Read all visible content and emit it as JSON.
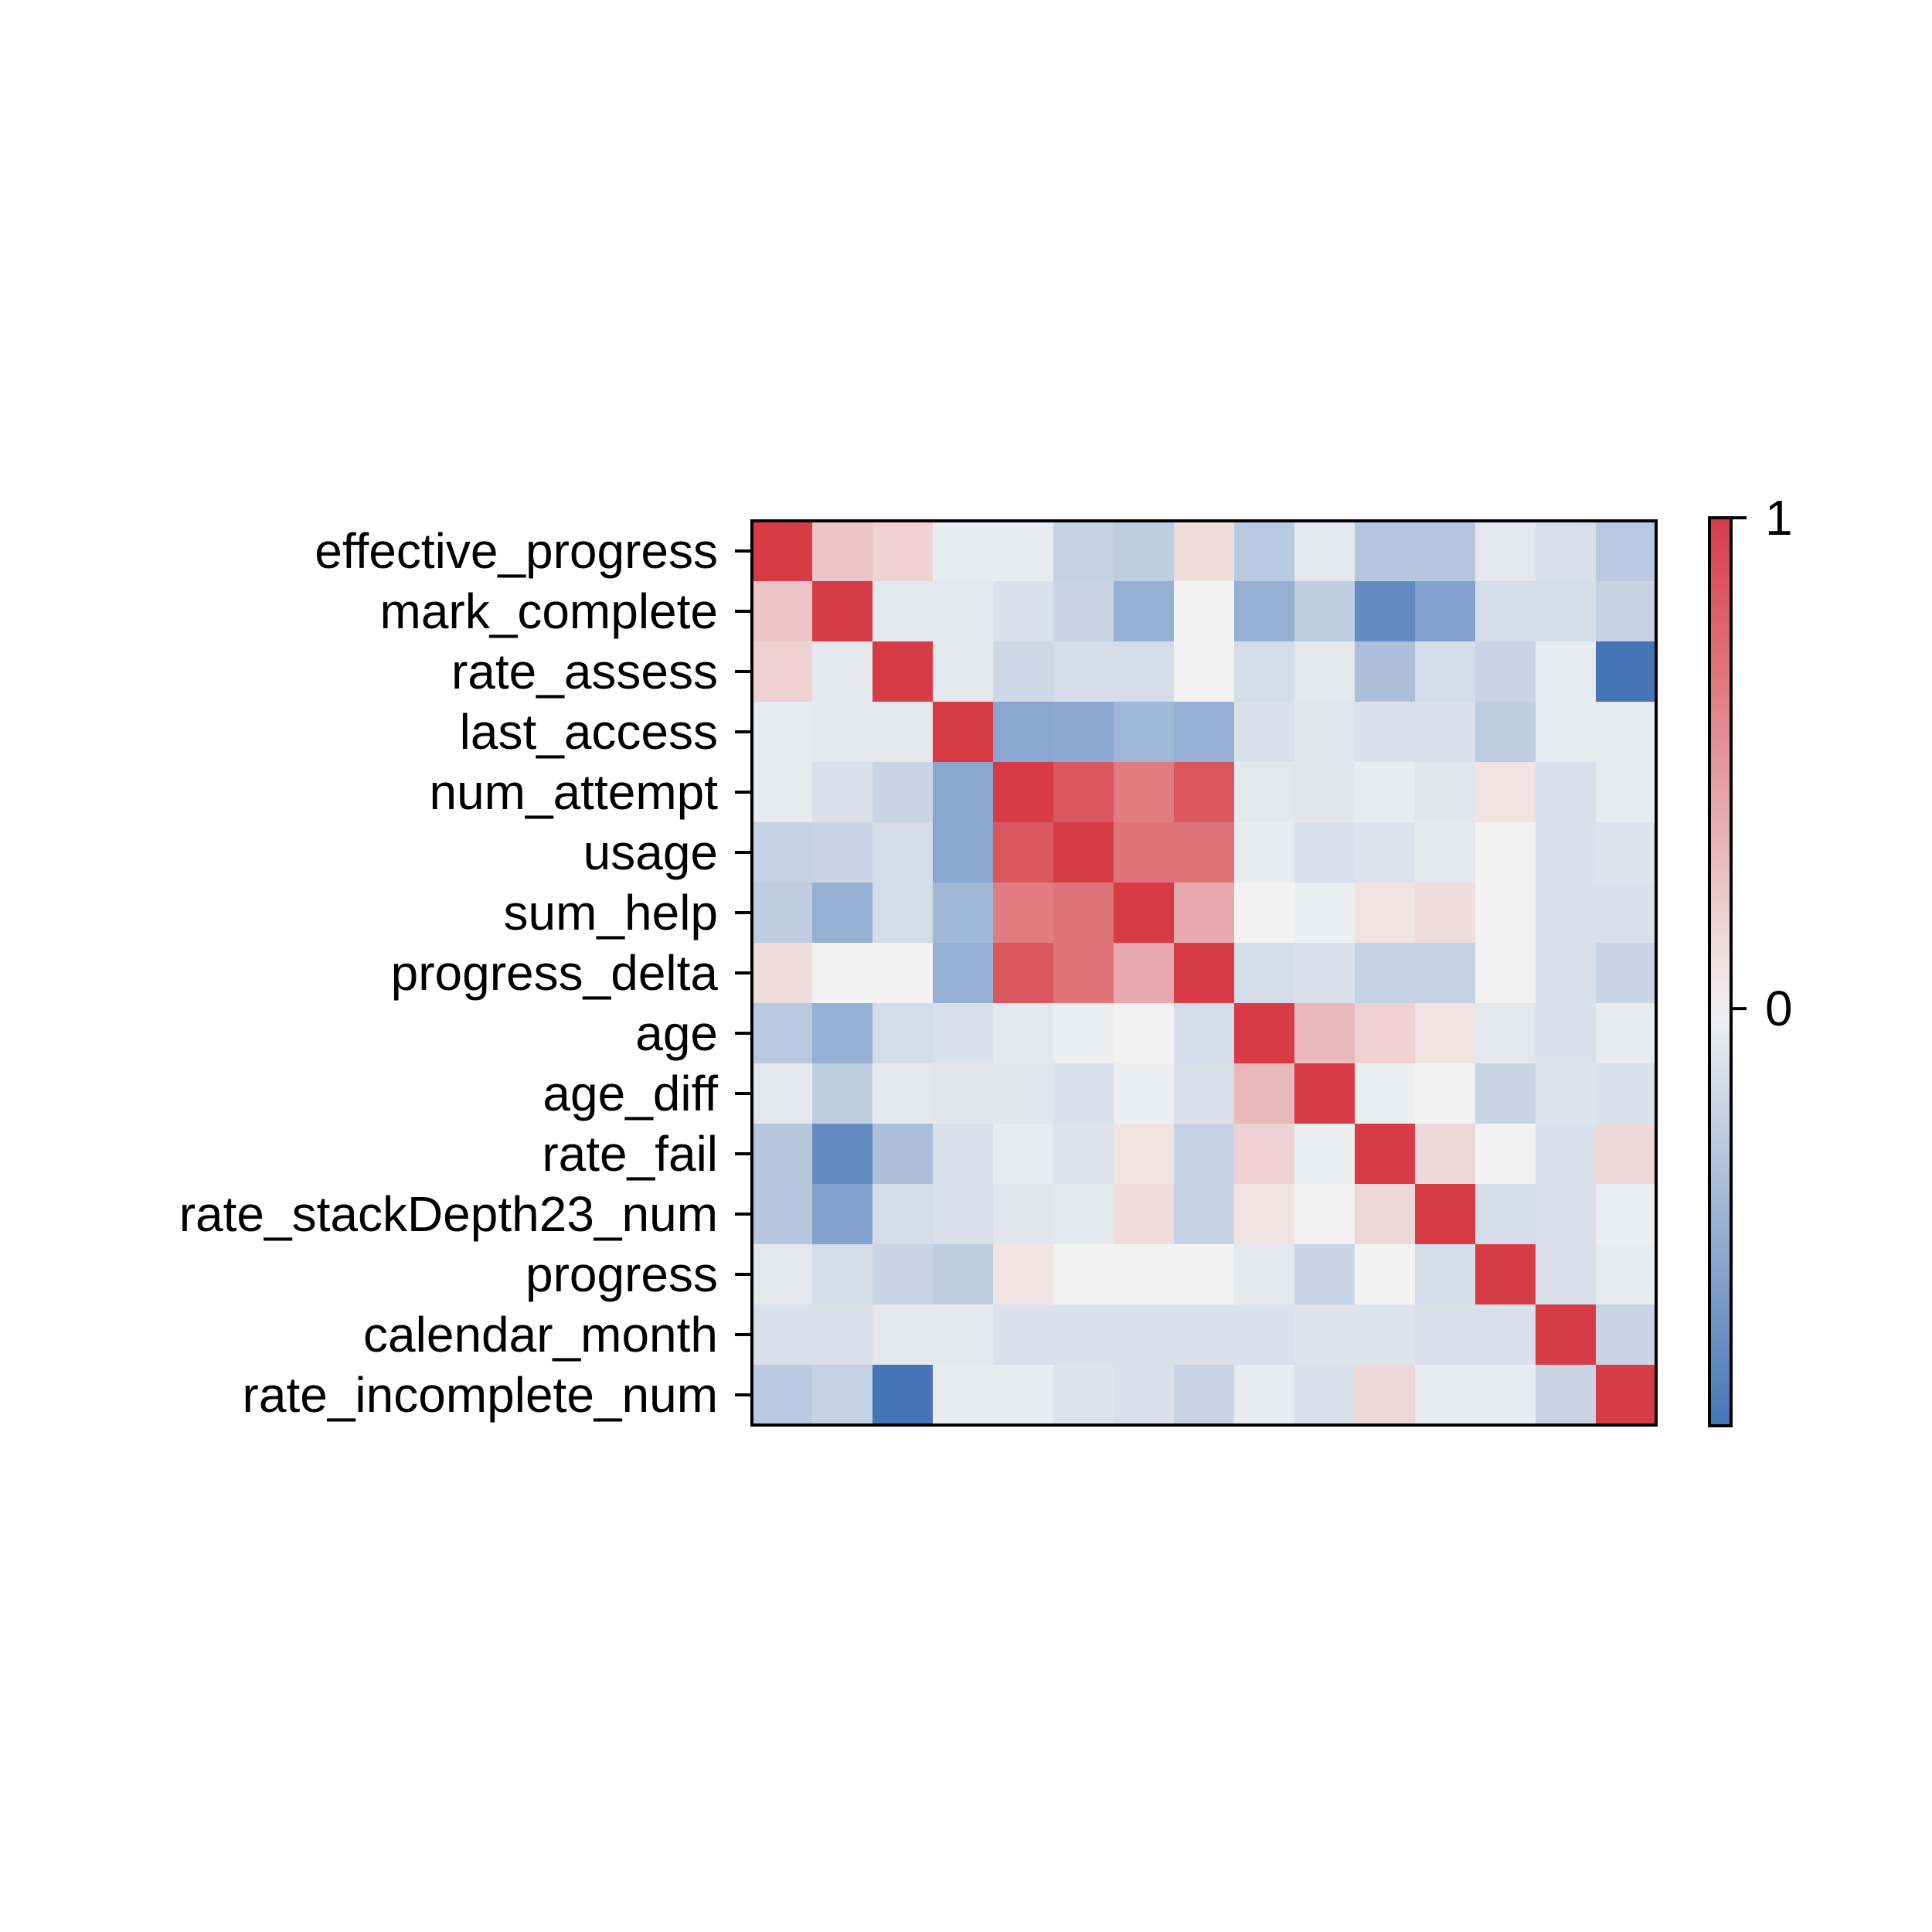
{
  "chart_data": {
    "type": "heatmap",
    "title": "",
    "xlabel": "",
    "ylabel": "",
    "row_labels": [
      "effective_progress",
      "mark_complete",
      "rate_assess",
      "last_access",
      "num_attempt",
      "usage",
      "sum_help",
      "progress_delta",
      "age",
      "age_diff",
      "rate_fail",
      "rate_stackDepth23_num",
      "progress",
      "calendar_month",
      "rate_incomplete_num"
    ],
    "column_labels_shown": false,
    "values": [
      [
        1.0,
        0.25,
        0.18,
        -0.05,
        -0.05,
        -0.22,
        -0.25,
        0.12,
        -0.28,
        -0.07,
        -0.3,
        -0.3,
        -0.07,
        -0.12,
        -0.28
      ],
      [
        0.25,
        1.0,
        -0.07,
        -0.07,
        -0.12,
        -0.2,
        -0.45,
        0.0,
        -0.45,
        -0.25,
        -0.7,
        -0.55,
        -0.15,
        -0.15,
        -0.22
      ],
      [
        0.18,
        -0.07,
        1.0,
        -0.07,
        -0.18,
        -0.15,
        -0.15,
        0.0,
        -0.15,
        -0.07,
        -0.35,
        -0.15,
        -0.2,
        -0.05,
        -0.85
      ],
      [
        -0.05,
        -0.07,
        -0.07,
        1.0,
        -0.52,
        -0.5,
        -0.4,
        -0.45,
        -0.12,
        -0.08,
        -0.12,
        -0.12,
        -0.25,
        -0.05,
        -0.05
      ],
      [
        -0.05,
        -0.12,
        -0.2,
        -0.52,
        1.0,
        0.85,
        0.65,
        0.85,
        -0.07,
        -0.08,
        -0.05,
        -0.08,
        0.08,
        -0.12,
        -0.05
      ],
      [
        -0.22,
        -0.2,
        -0.15,
        -0.52,
        0.85,
        1.0,
        0.7,
        0.7,
        -0.05,
        -0.12,
        -0.1,
        -0.07,
        0.0,
        -0.12,
        -0.1
      ],
      [
        -0.25,
        -0.45,
        -0.15,
        -0.4,
        0.65,
        0.7,
        1.0,
        0.4,
        0.0,
        -0.03,
        0.08,
        0.12,
        0.0,
        -0.12,
        -0.12
      ],
      [
        0.12,
        0.0,
        0.0,
        -0.45,
        0.85,
        0.7,
        0.4,
        1.0,
        -0.15,
        -0.12,
        -0.22,
        -0.22,
        0.0,
        -0.12,
        -0.2
      ],
      [
        -0.28,
        -0.45,
        -0.15,
        -0.12,
        -0.07,
        -0.03,
        0.0,
        -0.15,
        1.0,
        0.32,
        0.18,
        0.08,
        -0.07,
        -0.12,
        -0.05
      ],
      [
        -0.07,
        -0.25,
        -0.07,
        -0.08,
        -0.08,
        -0.12,
        -0.03,
        -0.12,
        0.32,
        1.0,
        -0.03,
        0.0,
        -0.2,
        -0.1,
        -0.12
      ],
      [
        -0.3,
        -0.7,
        -0.35,
        -0.12,
        -0.05,
        -0.1,
        0.08,
        -0.22,
        0.18,
        -0.03,
        1.0,
        0.15,
        0.0,
        -0.12,
        0.15
      ],
      [
        -0.3,
        -0.55,
        -0.15,
        -0.12,
        -0.08,
        -0.07,
        0.12,
        -0.22,
        0.08,
        0.0,
        0.15,
        1.0,
        -0.15,
        -0.12,
        -0.03
      ],
      [
        -0.07,
        -0.15,
        -0.2,
        -0.25,
        0.08,
        0.0,
        0.0,
        0.0,
        -0.07,
        -0.2,
        0.0,
        -0.15,
        1.0,
        -0.12,
        -0.05
      ],
      [
        -0.12,
        -0.12,
        -0.07,
        -0.07,
        -0.12,
        -0.12,
        -0.12,
        -0.12,
        -0.12,
        -0.1,
        -0.1,
        -0.12,
        -0.12,
        1.0,
        -0.2
      ],
      [
        -0.28,
        -0.22,
        -0.85,
        -0.05,
        -0.05,
        -0.1,
        -0.12,
        -0.2,
        -0.05,
        -0.12,
        0.15,
        -0.05,
        -0.05,
        -0.2,
        1.0
      ]
    ],
    "colorbar": {
      "min": -0.85,
      "max": 1,
      "ticks": [
        1,
        0
      ],
      "tick_labels": [
        "1",
        "0"
      ],
      "low_color": "#4575b7",
      "mid_color": "#f2f2f2",
      "high_color": "#d73c46"
    },
    "grid": false,
    "legend": "colorbar-right"
  }
}
